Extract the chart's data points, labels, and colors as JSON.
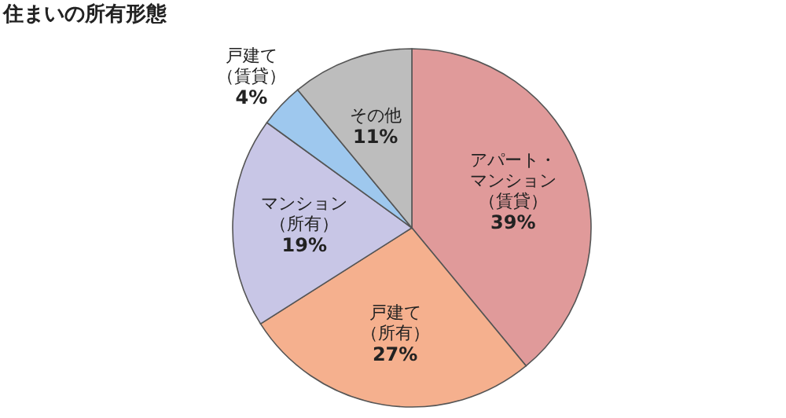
{
  "chart_data": {
    "type": "pie",
    "title": "住まいの所有形態",
    "categories": [
      "アパート・マンション（賃貸）",
      "戸建て（所有）",
      "マンション（所有）",
      "戸建て（賃貸）",
      "その他"
    ],
    "values": [
      39,
      27,
      19,
      4,
      11
    ],
    "value_labels": [
      "39%",
      "27%",
      "19%",
      "4%",
      "11%"
    ],
    "colors": [
      "#e09a9a",
      "#f5b08e",
      "#c8c6e6",
      "#9ec8ee",
      "#bdbdbd"
    ],
    "legend": false
  }
}
